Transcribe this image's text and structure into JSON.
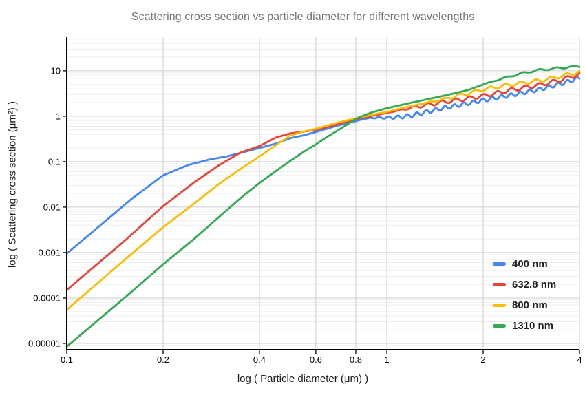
{
  "chart_data": {
    "type": "line",
    "title": "Scattering cross section vs particle diameter for different wavelengths",
    "x_axis": {
      "label": "log ( Particle diameter (μm) )",
      "scale": "log",
      "range": [
        0.1,
        4
      ],
      "ticks": [
        0.1,
        0.2,
        0.4,
        0.6,
        0.8,
        1,
        2,
        4
      ],
      "tick_labels": [
        "0.1",
        "0.2",
        "0.4",
        "0.6",
        "0.8",
        "1",
        "2",
        "4"
      ]
    },
    "y_axis": {
      "label": "log ( Scattering cross section (μm²) )",
      "scale": "log",
      "range": [
        7.3e-06,
        55
      ],
      "ticks": [
        10,
        1,
        0.1,
        0.01,
        0.001,
        0.0001,
        1e-05
      ],
      "tick_labels": [
        "10",
        "1",
        "0.1",
        "0.01",
        "0.001",
        "0.0001",
        "0.00001"
      ]
    },
    "grid": {
      "major": true,
      "minor": true,
      "major_color": "#cccccc",
      "minor_color": "#ededed"
    },
    "axis_color": "#000000",
    "legend": {
      "position": "right"
    },
    "series": [
      {
        "name": "400 nm",
        "color": "#4285F4",
        "points": [
          [
            0.1,
            0.00095
          ],
          [
            0.13,
            0.0045
          ],
          [
            0.16,
            0.0155
          ],
          [
            0.2,
            0.05
          ],
          [
            0.24,
            0.085
          ],
          [
            0.28,
            0.112
          ],
          [
            0.32,
            0.133
          ],
          [
            0.36,
            0.165
          ],
          [
            0.4,
            0.2
          ],
          [
            0.45,
            0.25
          ],
          [
            0.5,
            0.33
          ],
          [
            0.55,
            0.38
          ],
          [
            0.6,
            0.45
          ],
          [
            0.7,
            0.62
          ],
          [
            0.75,
            0.7
          ],
          [
            0.8,
            0.78
          ],
          [
            0.85,
            0.88
          ],
          [
            0.9,
            0.92
          ],
          [
            1.0,
            0.93
          ],
          [
            1.1,
            0.96
          ],
          [
            1.2,
            1.05
          ],
          [
            1.3,
            1.2
          ],
          [
            1.5,
            1.5
          ],
          [
            1.75,
            1.85
          ],
          [
            2.0,
            2.25
          ],
          [
            2.5,
            3.0
          ],
          [
            3.0,
            3.9
          ],
          [
            3.5,
            5.2
          ],
          [
            4.0,
            6.9
          ]
        ],
        "oscillation": {
          "start": 0.84,
          "amplitude_log": 0.04,
          "cycles_per_decade": 34
        }
      },
      {
        "name": "632.8 nm",
        "color": "#EA4335",
        "points": [
          [
            0.1,
            0.00015
          ],
          [
            0.15,
            0.0017
          ],
          [
            0.2,
            0.0105
          ],
          [
            0.25,
            0.035
          ],
          [
            0.3,
            0.085
          ],
          [
            0.35,
            0.16
          ],
          [
            0.4,
            0.22
          ],
          [
            0.45,
            0.34
          ],
          [
            0.5,
            0.42
          ],
          [
            0.6,
            0.5
          ],
          [
            0.7,
            0.66
          ],
          [
            0.8,
            0.86
          ],
          [
            0.9,
            1.02
          ],
          [
            1.0,
            1.18
          ],
          [
            1.2,
            1.55
          ],
          [
            1.5,
            2.05
          ],
          [
            1.75,
            2.4
          ],
          [
            2.0,
            2.8
          ],
          [
            2.5,
            3.9
          ],
          [
            3.0,
            4.9
          ],
          [
            3.5,
            6.3
          ],
          [
            4.0,
            8.4
          ]
        ],
        "oscillation": {
          "start": 1.02,
          "amplitude_log": 0.04,
          "cycles_per_decade": 23
        }
      },
      {
        "name": "800 nm",
        "color": "#FBBC04",
        "points": [
          [
            0.1,
            5.5e-05
          ],
          [
            0.15,
            0.00065
          ],
          [
            0.2,
            0.0036
          ],
          [
            0.25,
            0.012
          ],
          [
            0.3,
            0.033
          ],
          [
            0.35,
            0.07
          ],
          [
            0.4,
            0.13
          ],
          [
            0.45,
            0.23
          ],
          [
            0.5,
            0.38
          ],
          [
            0.55,
            0.46
          ],
          [
            0.6,
            0.53
          ],
          [
            0.7,
            0.72
          ],
          [
            0.8,
            0.9
          ],
          [
            0.9,
            1.08
          ],
          [
            1.0,
            1.25
          ],
          [
            1.2,
            1.7
          ],
          [
            1.5,
            2.35
          ],
          [
            2.0,
            3.9
          ],
          [
            2.5,
            5.1
          ],
          [
            3.0,
            6.1
          ],
          [
            3.5,
            7.6
          ],
          [
            4.0,
            9.5
          ]
        ],
        "oscillation": {
          "start": 1.25,
          "amplitude_log": 0.035,
          "cycles_per_decade": 21
        }
      },
      {
        "name": "1310 nm",
        "color": "#34A853",
        "points": [
          [
            0.1,
            8.5e-06
          ],
          [
            0.15,
            9.5e-05
          ],
          [
            0.2,
            0.00055
          ],
          [
            0.25,
            0.002
          ],
          [
            0.3,
            0.0062
          ],
          [
            0.35,
            0.016
          ],
          [
            0.4,
            0.034
          ],
          [
            0.45,
            0.062
          ],
          [
            0.5,
            0.105
          ],
          [
            0.55,
            0.165
          ],
          [
            0.6,
            0.24
          ],
          [
            0.65,
            0.35
          ],
          [
            0.7,
            0.48
          ],
          [
            0.75,
            0.65
          ],
          [
            0.8,
            0.87
          ],
          [
            0.85,
            1.05
          ],
          [
            0.9,
            1.22
          ],
          [
            1.0,
            1.5
          ],
          [
            1.2,
            2.0
          ],
          [
            1.5,
            2.8
          ],
          [
            1.8,
            3.8
          ],
          [
            2.0,
            5.0
          ],
          [
            2.2,
            6.2
          ],
          [
            2.5,
            8.0
          ],
          [
            2.8,
            9.6
          ],
          [
            3.0,
            10.4
          ],
          [
            3.5,
            11.6
          ],
          [
            4.0,
            12.6
          ]
        ],
        "oscillation": {
          "start": 1.9,
          "amplitude_log": 0.02,
          "cycles_per_decade": 19
        }
      }
    ]
  }
}
